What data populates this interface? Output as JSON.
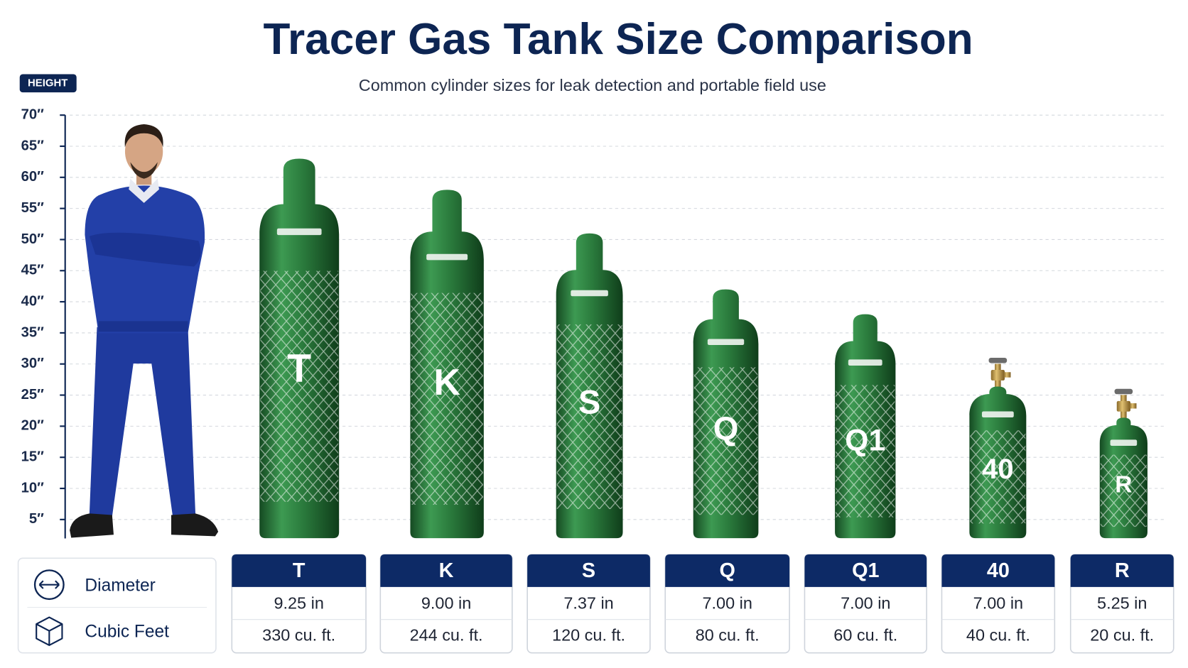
{
  "chart_data": {
    "type": "bar",
    "title": "Tracer Gas Tank Size Comparison",
    "subtitle": "Common cylinder sizes for leak detection and portable field use",
    "y_label": "HEIGHT",
    "categories": [
      "T",
      "K",
      "S",
      "Q",
      "Q1",
      "40",
      "R"
    ],
    "values": [
      63,
      58,
      51,
      42,
      38,
      31,
      26
    ],
    "color": "#2e7d3e",
    "ylim": [
      2,
      70
    ],
    "yticks": [
      {
        "value": 5,
        "label": "5″"
      },
      {
        "value": 10,
        "label": "10″"
      },
      {
        "value": 15,
        "label": "15″"
      },
      {
        "value": 20,
        "label": "20″"
      },
      {
        "value": 25,
        "label": "25″"
      },
      {
        "value": 30,
        "label": "30″"
      },
      {
        "value": 35,
        "label": "35″"
      },
      {
        "value": 40,
        "label": "40″"
      },
      {
        "value": 45,
        "label": "45″"
      },
      {
        "value": 50,
        "label": "50″"
      },
      {
        "value": 55,
        "label": "55″"
      },
      {
        "value": 60,
        "label": "60″"
      },
      {
        "value": 65,
        "label": "65″"
      },
      {
        "value": 70,
        "label": "70″"
      }
    ],
    "grid": true,
    "table": {
      "rows": [
        {
          "label": "Diameter",
          "cells": [
            "9.25 in",
            "9.00 in",
            "7.37 in",
            "7.00 in",
            "7.00 in",
            "7.00 in",
            "5.25 in"
          ]
        },
        {
          "label": "Cubic Feet",
          "cells": [
            "330 cu. ft.",
            "244 cu. ft.",
            "120 cu. ft.",
            "80 cu. ft.",
            "60 cu. ft.",
            "40 cu. ft.",
            "20 cu. ft."
          ]
        }
      ]
    }
  }
}
